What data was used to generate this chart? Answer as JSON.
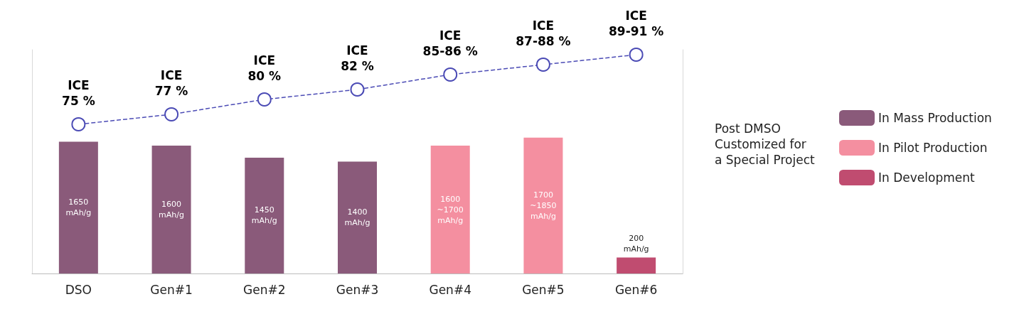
{
  "chart_data": {
    "type": "bar",
    "stacked": true,
    "legend": "right",
    "tick_labels": false,
    "ylim": [
      0,
      2800
    ],
    "y2lim": [
      45,
      90
    ],
    "categories": [
      "DSO",
      "Gen#1",
      "Gen#2",
      "Gen#3",
      "Gen#4",
      "Gen#5",
      "Gen#6"
    ],
    "series": [
      {
        "name": "In Mass Production",
        "color": "#8a5a7a",
        "values": [
          1650,
          1600,
          1450,
          1400,
          null,
          null,
          null
        ],
        "value_labels": [
          "1650\nmAh/g",
          "1600\nmAh/g",
          "1450\nmAh/g",
          "1400\nmAh/g",
          null,
          null,
          null
        ]
      },
      {
        "name": "In Pilot Production",
        "color": "#f48fa0",
        "values": [
          null,
          null,
          null,
          null,
          1600,
          1700,
          null
        ],
        "value_labels": [
          null,
          null,
          null,
          null,
          "1600\n~1700\nmAh/g",
          "1700\n~1850\nmAh/g",
          null
        ]
      },
      {
        "name": "In Development",
        "color": "#c04c70",
        "values": [
          null,
          null,
          null,
          null,
          null,
          null,
          200
        ],
        "value_labels": [
          null,
          null,
          null,
          null,
          null,
          null,
          "200\nmAh/g"
        ]
      },
      {
        "type": "line",
        "axis": "y2",
        "color": "#4b4bb5",
        "marker": "circle",
        "line_style": "dashed",
        "values": [
          75,
          77,
          80,
          82,
          85,
          87,
          89
        ],
        "value_labels": [
          "ICE\n75 %",
          "ICE\n77 %",
          "ICE\n80 %",
          "ICE\n82 %",
          "ICE\n85-86 %",
          "ICE\n87-88 %",
          "ICE\n89-91 %"
        ]
      }
    ],
    "annotations": [
      "Post DMSO\nCustomized for\na Special Project"
    ]
  }
}
